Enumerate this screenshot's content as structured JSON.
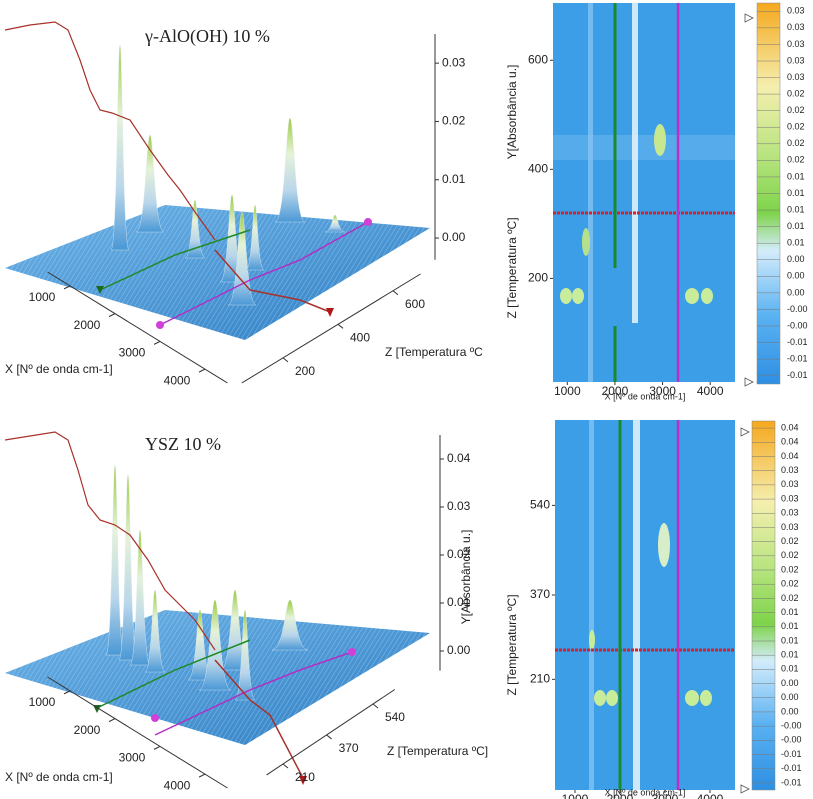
{
  "chart_data": [
    {
      "type": "surface3d",
      "title": "γ-AlO(OH) 10 %",
      "xlabel": "X [Nº de onda cm-1]",
      "ylabel": "Y[Absorbância u.]",
      "zlabel": "Z [Temperatura ºC",
      "xlim": [
        500,
        4500
      ],
      "xticks": [
        1000,
        2000,
        3000,
        4000
      ],
      "zlim": [
        50,
        700
      ],
      "zticks": [
        200,
        400,
        600
      ],
      "ylim": [
        -0.002,
        0.035
      ],
      "yticks": [
        {
          "value": 0,
          "label": "0.00"
        },
        0.01,
        0.02,
        0.03
      ]
    },
    {
      "type": "heatmap",
      "xlabel": "X [Nº de onda cm-1]",
      "ylabel": "Z [Temperatura ºC]",
      "xlim": [
        700,
        4520
      ],
      "xticks": [
        1000,
        2000,
        3000,
        4000
      ],
      "ylim": [
        10,
        705
      ],
      "yticks": [
        200,
        400,
        600
      ],
      "colorbar_lim": [
        -0.0105,
        0.0355
      ],
      "colorbar_ticks": [
        {
          "value": 0.0345,
          "label": "0.03"
        },
        {
          "value": 0.0325,
          "label": "0.03"
        },
        {
          "value": 0.0305,
          "label": "0.03"
        },
        {
          "value": 0.0285,
          "label": "0.03"
        },
        {
          "value": 0.0265,
          "label": "0.03"
        },
        {
          "value": 0.0245,
          "label": "0.02"
        },
        {
          "value": 0.0225,
          "label": "0.02"
        },
        {
          "value": 0.0205,
          "label": "0.02"
        },
        {
          "value": 0.0185,
          "label": "0.02"
        },
        {
          "value": 0.0165,
          "label": "0.02"
        },
        {
          "value": 0.0145,
          "label": "0.01"
        },
        {
          "value": 0.0125,
          "label": "0.01"
        },
        {
          "value": 0.0105,
          "label": "0.01"
        },
        {
          "value": 0.0085,
          "label": "0.01"
        },
        {
          "value": 0.0065,
          "label": "0.01"
        },
        {
          "value": 0.0045,
          "label": "0.00"
        },
        {
          "value": 0.0025,
          "label": "0.00"
        },
        {
          "value": 0.0005,
          "label": "0.00"
        },
        {
          "value": -0.0015,
          "label": "-0.00"
        },
        {
          "value": -0.0035,
          "label": "-0.00"
        },
        {
          "value": -0.0055,
          "label": "-0.01"
        },
        {
          "value": -0.0075,
          "label": "-0.01"
        },
        {
          "value": -0.0095,
          "label": "-0.01"
        }
      ]
    },
    {
      "type": "surface3d",
      "title": "YSZ 10 %",
      "xlabel": "X [Nº de onda cm-1]",
      "ylabel": "Y[Absorbância u.]",
      "zlabel": "Z [Temperatura ºC]",
      "xlim": [
        500,
        4500
      ],
      "xticks": [
        1000,
        2000,
        3000,
        4000
      ],
      "zlim": [
        150,
        620
      ],
      "zticks": [
        210,
        370,
        540
      ],
      "ylim": [
        -0.002,
        0.045
      ],
      "yticks": [
        {
          "value": 0,
          "label": "0.00"
        },
        0.01,
        0.02,
        0.03,
        0.04
      ]
    },
    {
      "type": "heatmap",
      "xlabel": "X [Nº de onda cm-1]",
      "ylabel": "Z [Temperatura ºC]",
      "xlim": [
        556,
        4556
      ],
      "xticks": [
        1000,
        2000,
        3000,
        4000
      ],
      "ylim": [
        0,
        702
      ],
      "yticks": [
        210,
        370,
        540
      ],
      "colorbar_lim": [
        -0.0105,
        0.0415
      ],
      "colorbar_ticks": [
        {
          "value": 0.0405,
          "label": "0.04"
        },
        {
          "value": 0.0385,
          "label": "0.04"
        },
        {
          "value": 0.0365,
          "label": "0.04"
        },
        {
          "value": 0.0345,
          "label": "0.03"
        },
        {
          "value": 0.0325,
          "label": "0.03"
        },
        {
          "value": 0.0305,
          "label": "0.03"
        },
        {
          "value": 0.0285,
          "label": "0.03"
        },
        {
          "value": 0.0265,
          "label": "0.03"
        },
        {
          "value": 0.0245,
          "label": "0.02"
        },
        {
          "value": 0.0225,
          "label": "0.02"
        },
        {
          "value": 0.0205,
          "label": "0.02"
        },
        {
          "value": 0.0185,
          "label": "0.02"
        },
        {
          "value": 0.0165,
          "label": "0.02"
        },
        {
          "value": 0.0145,
          "label": "0.01"
        },
        {
          "value": 0.0125,
          "label": "0.01"
        },
        {
          "value": 0.0105,
          "label": "0.01"
        },
        {
          "value": 0.0085,
          "label": "0.01"
        },
        {
          "value": 0.0065,
          "label": "0.01"
        },
        {
          "value": 0.0045,
          "label": "0.00"
        },
        {
          "value": 0.0025,
          "label": "0.00"
        },
        {
          "value": 0.0005,
          "label": "0.00"
        },
        {
          "value": -0.0015,
          "label": "-0.00"
        },
        {
          "value": -0.0035,
          "label": "-0.00"
        },
        {
          "value": -0.0055,
          "label": "-0.01"
        },
        {
          "value": -0.0075,
          "label": "-0.01"
        },
        {
          "value": -0.0095,
          "label": "-0.01"
        }
      ]
    }
  ]
}
